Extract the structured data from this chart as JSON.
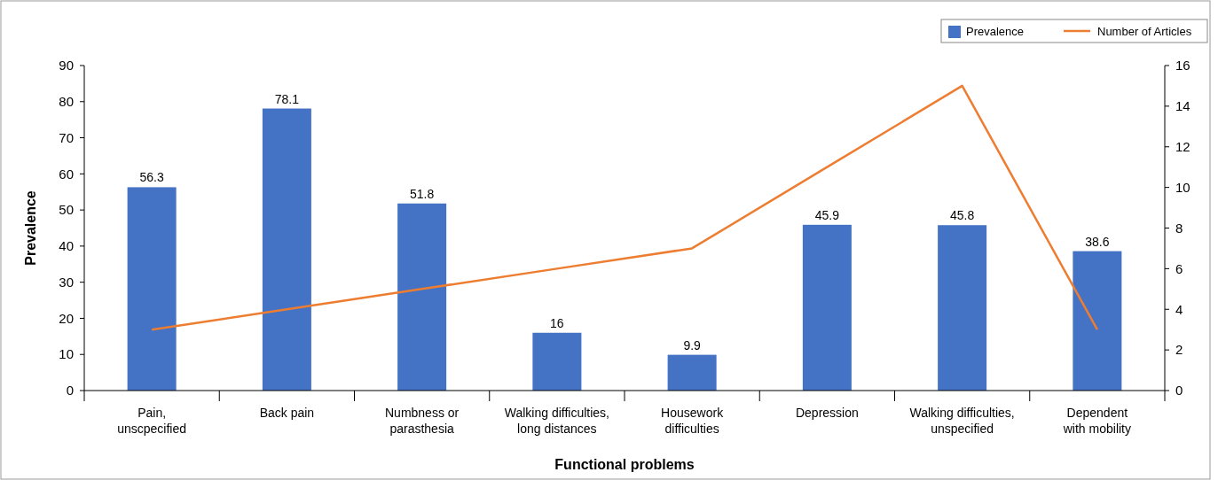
{
  "chart_data": {
    "type": "bar",
    "xlabel": "Functional problems",
    "ylabel": "Prevalence",
    "categories": [
      "Pain, unscpecified",
      "Back pain",
      "Numbness or parasthesia",
      "Walking difficulties, long distances",
      "Housework difficulties",
      "Depression",
      "Walking difficulties, unspecified",
      "Dependent with mobility"
    ],
    "series": [
      {
        "name": "Prevalence",
        "color": "#4472c4",
        "values": [
          56.3,
          78.1,
          51.8,
          16,
          9.9,
          45.9,
          45.8,
          38.6
        ],
        "value_labels": [
          "56.3",
          "78.1",
          "51.8",
          "16",
          "9.9",
          "45.9",
          "45.8",
          "38.6"
        ]
      },
      {
        "name": "Number of Articles",
        "type": "line",
        "axis": "y2",
        "color": "#ed7d31",
        "values": [
          3,
          4,
          5,
          6,
          7,
          11,
          15,
          3
        ]
      }
    ],
    "ylim": [
      0,
      90
    ],
    "yticks": [
      0,
      10,
      20,
      30,
      40,
      50,
      60,
      70,
      80,
      90
    ],
    "y2lim": [
      0,
      16
    ],
    "y2ticks": [
      0,
      2,
      4,
      6,
      8,
      10,
      12,
      14,
      16
    ],
    "legend": "top right",
    "marker": "none",
    "line_style": "solid",
    "grid": false
  }
}
